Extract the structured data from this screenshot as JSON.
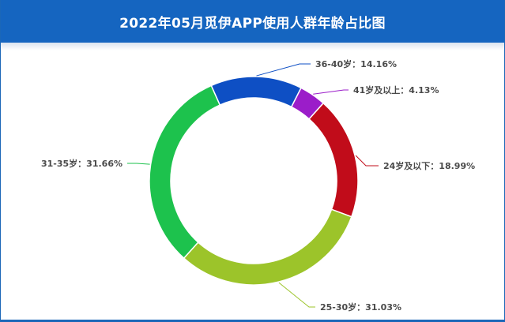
{
  "header": {
    "title": "2022年05月觅伊APP使用人群年龄占比图"
  },
  "chart_data": {
    "type": "pie",
    "title": "2022年05月觅伊APP使用人群年龄占比图",
    "donut": true,
    "slices": [
      {
        "name": "41岁及以上",
        "value": 4.13,
        "label": "41岁及以上：4.13%",
        "color": "#9b1dc9"
      },
      {
        "name": "24岁及以下",
        "value": 18.99,
        "label": "24岁及以下：18.99%",
        "color": "#c10c1a"
      },
      {
        "name": "25-30岁",
        "value": 31.03,
        "label": "25-30岁：31.03%",
        "color": "#9cc42a"
      },
      {
        "name": "31-35岁",
        "value": 31.66,
        "label": "31-35岁：31.66%",
        "color": "#1dc24d"
      },
      {
        "name": "36-40岁",
        "value": 14.16,
        "label": "36-40岁：14.16%",
        "color": "#0e4fc4"
      }
    ]
  }
}
